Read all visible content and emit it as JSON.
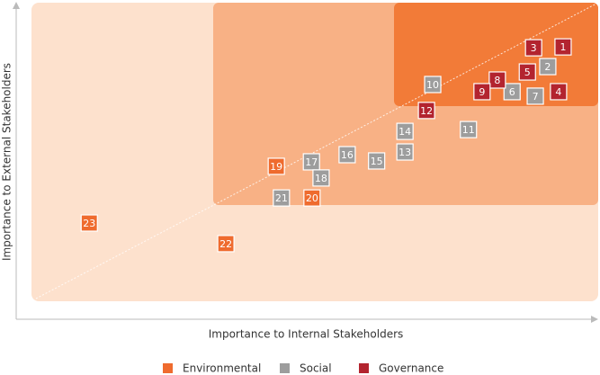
{
  "chart_data": {
    "type": "scatter",
    "xlabel": "Importance to Internal Stakeholders",
    "ylabel": "Importance to External Stakeholders",
    "xlim": [
      0,
      100
    ],
    "ylim": [
      0,
      100
    ],
    "series": [
      {
        "name": "Environmental",
        "color": "#ef6b2e",
        "labels": [
          "19",
          "20",
          "22",
          "23"
        ],
        "x": [
          43.2,
          49.5,
          34.3,
          10.2
        ],
        "y": [
          45.2,
          34.6,
          19.3,
          26.2
        ]
      },
      {
        "name": "Social",
        "color": "#9d9d9d",
        "labels": [
          "2",
          "6",
          "7",
          "10",
          "11",
          "13",
          "14",
          "15",
          "16",
          "17",
          "18",
          "21"
        ],
        "x": [
          91.1,
          84.8,
          88.9,
          70.8,
          77.1,
          65.9,
          65.9,
          60.9,
          55.7,
          49.4,
          51.1,
          44.1
        ],
        "y": [
          78.6,
          70.2,
          68.7,
          72.6,
          57.5,
          50.0,
          56.9,
          47.0,
          49.1,
          46.7,
          41.3,
          34.6
        ]
      },
      {
        "name": "Governance",
        "color": "#b3242f",
        "labels": [
          "1",
          "3",
          "4",
          "5",
          "8",
          "9",
          "12"
        ],
        "x": [
          93.8,
          88.6,
          93.0,
          87.5,
          82.2,
          79.5,
          69.7
        ],
        "y": [
          85.2,
          84.9,
          70.2,
          76.8,
          74.1,
          70.2,
          63.9
        ]
      }
    ]
  }
}
